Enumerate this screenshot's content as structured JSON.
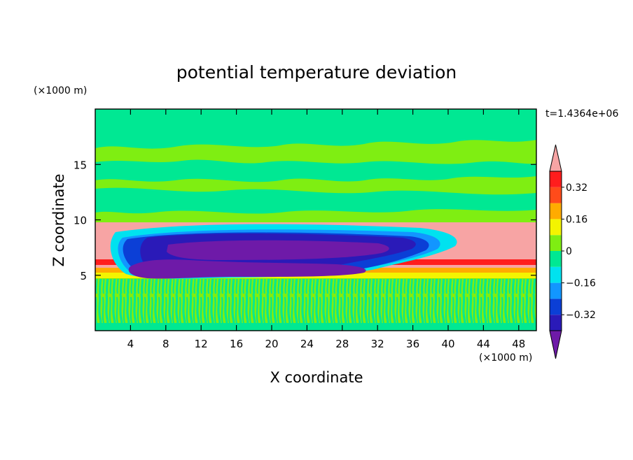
{
  "chart_data": {
    "type": "heatmap",
    "title": "potential temperature deviation",
    "xlabel": "X coordinate",
    "ylabel": "Z coordinate",
    "x_unit": "(×1000 m)",
    "y_unit": "(×1000 m)",
    "time_label": "t=1.4364e+06",
    "xlim": [
      0,
      50
    ],
    "ylim": [
      0,
      20
    ],
    "x_ticks": [
      4,
      8,
      12,
      16,
      20,
      24,
      28,
      32,
      36,
      40,
      44,
      48
    ],
    "x_tick_labels": [
      "4",
      "8",
      "12",
      "16",
      "20",
      "24",
      "28",
      "32",
      "36",
      "40",
      "44",
      "48"
    ],
    "y_ticks": [
      5,
      10,
      15
    ],
    "y_tick_labels": [
      "5",
      "10",
      "15"
    ],
    "colorbar": {
      "levels": [
        -0.4,
        -0.32,
        -0.24,
        -0.16,
        -0.08,
        0,
        0.08,
        0.16,
        0.24,
        0.32,
        0.4
      ],
      "tick_values": [
        0.32,
        0.16,
        0,
        -0.16,
        -0.32
      ],
      "tick_labels": [
        "0.32",
        "0.16",
        "0",
        "−0.16",
        "−0.32"
      ],
      "colors": [
        "#6e1aa8",
        "#2a1ab8",
        "#0b3fd6",
        "#1296ff",
        "#00e2ef",
        "#00e893",
        "#7fee12",
        "#f4f400",
        "#ffab00",
        "#ff4b1a",
        "#ff1d1d",
        "#f7a4a4"
      ],
      "over_color": "#f7a4a4",
      "under_color": "#6e1aa8",
      "extend": "both"
    }
  }
}
